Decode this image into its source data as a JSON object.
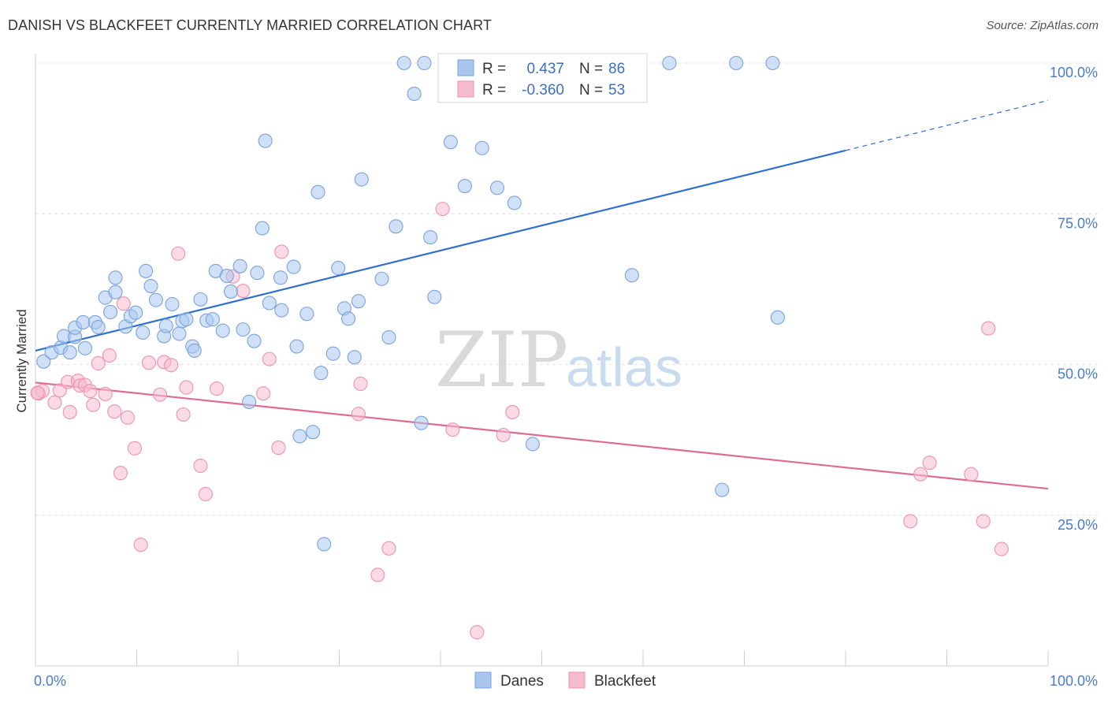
{
  "title": "DANISH VS BLACKFEET CURRENTLY MARRIED CORRELATION CHART",
  "source": "Source: ZipAtlas.com",
  "watermark": {
    "zip": "ZIP",
    "atlas": "atlas"
  },
  "legend": {
    "r_label": "R =",
    "n_label": "N =",
    "danes": {
      "r": "0.437",
      "n": "86"
    },
    "blackfeet": {
      "r": "-0.360",
      "n": "53"
    }
  },
  "bottom_legend": {
    "danes": "Danes",
    "blackfeet": "Blackfeet"
  },
  "chart_data": {
    "type": "scatter",
    "xlabel": "",
    "ylabel": "Currently Married",
    "xlim": [
      0,
      100
    ],
    "ylim": [
      0,
      100
    ],
    "x_tick_labels": [
      "0.0%",
      "100.0%"
    ],
    "y_tick_values": [
      25,
      50,
      75,
      100
    ],
    "y_tick_labels": [
      "25.0%",
      "50.0%",
      "75.0%",
      "100.0%"
    ],
    "colors": {
      "danes_fill": "#a9c6ee",
      "danes_stroke": "#7aa3dc",
      "danes_line": "#2f6fcf",
      "blackfeet_fill": "#f6bccd",
      "blackfeet_stroke": "#ec93ad",
      "blackfeet_line": "#e06b92"
    },
    "series": [
      {
        "name": "Danes",
        "trend": {
          "x0": 0,
          "y0": 52.3,
          "x1": 80,
          "y1": 85.5,
          "dashed_to_x": 100,
          "dashed_to_y": 93.8
        },
        "points": [
          [
            0.8,
            50.5
          ],
          [
            1.6,
            52
          ],
          [
            2.5,
            52.8
          ],
          [
            3.4,
            52
          ],
          [
            2.8,
            54.7
          ],
          [
            3.9,
            54.6
          ],
          [
            4.9,
            52.7
          ],
          [
            3.9,
            56.1
          ],
          [
            4.7,
            57
          ],
          [
            5.9,
            57
          ],
          [
            6.2,
            56.2
          ],
          [
            7.4,
            58.7
          ],
          [
            6.9,
            61.1
          ],
          [
            7.9,
            62
          ],
          [
            7.9,
            64.4
          ],
          [
            8.9,
            56.3
          ],
          [
            9.4,
            58
          ],
          [
            9.9,
            58.6
          ],
          [
            10.6,
            55.3
          ],
          [
            10.9,
            65.5
          ],
          [
            11.4,
            63
          ],
          [
            11.9,
            60.7
          ],
          [
            12.7,
            54.7
          ],
          [
            12.9,
            56.4
          ],
          [
            13.5,
            60
          ],
          [
            14.2,
            55.1
          ],
          [
            14.5,
            57.2
          ],
          [
            14.9,
            57.5
          ],
          [
            15.5,
            53
          ],
          [
            15.7,
            52.3
          ],
          [
            16.3,
            60.8
          ],
          [
            16.9,
            57.3
          ],
          [
            17.5,
            57.5
          ],
          [
            17.8,
            65.5
          ],
          [
            18.5,
            55.6
          ],
          [
            18.9,
            64.7
          ],
          [
            19.3,
            62.1
          ],
          [
            20.2,
            66.3
          ],
          [
            20.5,
            55.8
          ],
          [
            21.1,
            43.8
          ],
          [
            21.6,
            53.9
          ],
          [
            21.9,
            65.2
          ],
          [
            22.4,
            72.6
          ],
          [
            22.7,
            87.1
          ],
          [
            23.1,
            60.2
          ],
          [
            24.2,
            64.4
          ],
          [
            24.3,
            59
          ],
          [
            25.5,
            66.2
          ],
          [
            25.8,
            53
          ],
          [
            26.1,
            38.1
          ],
          [
            26.8,
            58.4
          ],
          [
            27.4,
            38.8
          ],
          [
            27.9,
            78.6
          ],
          [
            28.2,
            48.6
          ],
          [
            28.5,
            20.2
          ],
          [
            29.4,
            51.8
          ],
          [
            29.9,
            66
          ],
          [
            30.5,
            59.3
          ],
          [
            30.9,
            57.6
          ],
          [
            31.5,
            51.2
          ],
          [
            31.9,
            60.5
          ],
          [
            32.2,
            80.7
          ],
          [
            34.2,
            64.2
          ],
          [
            34.9,
            54.5
          ],
          [
            35.6,
            72.9
          ],
          [
            37.4,
            94.9
          ],
          [
            38.1,
            40.3
          ],
          [
            38.4,
            100
          ],
          [
            39,
            71.1
          ],
          [
            39.4,
            61.2
          ],
          [
            41,
            86.9
          ],
          [
            42.4,
            79.6
          ],
          [
            44.1,
            85.9
          ],
          [
            45.6,
            79.3
          ],
          [
            47.3,
            76.8
          ],
          [
            49.1,
            36.8
          ],
          [
            53.4,
            100
          ],
          [
            56.3,
            100
          ],
          [
            58.9,
            64.8
          ],
          [
            62.6,
            100
          ],
          [
            67.8,
            29.2
          ],
          [
            69.2,
            100
          ],
          [
            72.8,
            100
          ],
          [
            73.3,
            57.8
          ],
          [
            45.6,
            100
          ],
          [
            36.4,
            100
          ]
        ]
      },
      {
        "name": "Blackfeet",
        "trend": {
          "x0": 0,
          "y0": 47,
          "x1": 100,
          "y1": 29.4
        },
        "points": [
          [
            0.3,
            45.2
          ],
          [
            0.7,
            45.6
          ],
          [
            1.9,
            43.7
          ],
          [
            2.4,
            45.7
          ],
          [
            3.2,
            47.1
          ],
          [
            3.4,
            42.1
          ],
          [
            4.2,
            47.3
          ],
          [
            4.4,
            46.5
          ],
          [
            4.9,
            46.6
          ],
          [
            5.4,
            45.6
          ],
          [
            5.7,
            43.3
          ],
          [
            6.2,
            50.2
          ],
          [
            6.9,
            45.1
          ],
          [
            7.3,
            51.5
          ],
          [
            7.8,
            42.2
          ],
          [
            8.4,
            32
          ],
          [
            8.7,
            60.1
          ],
          [
            9.1,
            41.2
          ],
          [
            9.8,
            36.1
          ],
          [
            10.4,
            20.1
          ],
          [
            11.2,
            50.3
          ],
          [
            12.3,
            45
          ],
          [
            12.7,
            50.4
          ],
          [
            13.4,
            49.9
          ],
          [
            14.1,
            68.4
          ],
          [
            14.6,
            41.7
          ],
          [
            14.9,
            46.2
          ],
          [
            16.3,
            33.2
          ],
          [
            16.8,
            28.5
          ],
          [
            17.9,
            46
          ],
          [
            19.5,
            64.6
          ],
          [
            20.5,
            62.2
          ],
          [
            22.5,
            45.2
          ],
          [
            23.1,
            50.9
          ],
          [
            24,
            36.2
          ],
          [
            24.3,
            68.7
          ],
          [
            31.9,
            41.8
          ],
          [
            32.1,
            46.8
          ],
          [
            33.8,
            15.1
          ],
          [
            34.9,
            19.5
          ],
          [
            40.2,
            75.8
          ],
          [
            41.2,
            39.2
          ],
          [
            43.6,
            5.6
          ],
          [
            46.2,
            38.3
          ],
          [
            47.1,
            42.1
          ],
          [
            86.4,
            24
          ],
          [
            87.4,
            31.8
          ],
          [
            88.3,
            33.7
          ],
          [
            92.4,
            31.8
          ],
          [
            93.6,
            24
          ],
          [
            94.1,
            56
          ],
          [
            95.4,
            19.4
          ],
          [
            0.2,
            45.3
          ]
        ]
      }
    ]
  }
}
